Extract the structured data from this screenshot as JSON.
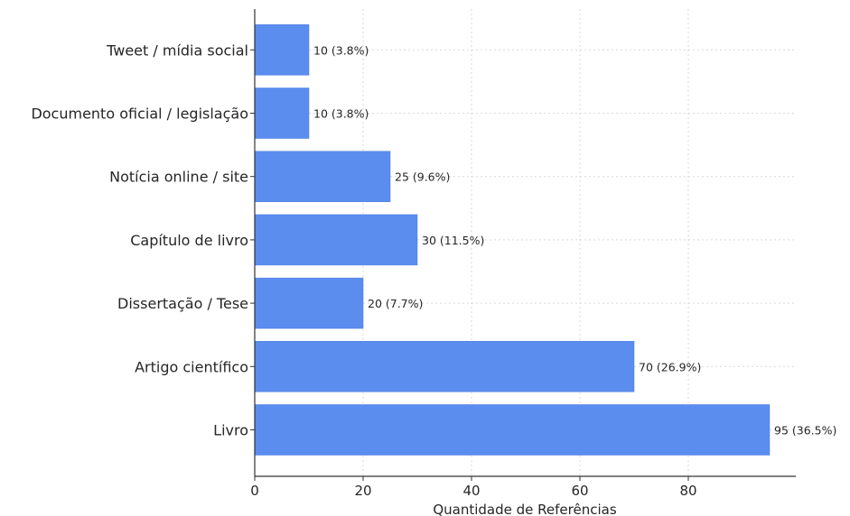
{
  "chart_data": {
    "type": "bar",
    "orientation": "horizontal",
    "title": "",
    "xlabel": "Quantidade de Referências",
    "ylabel": "",
    "categories": [
      "Livro",
      "Artigo científico",
      "Dissertação / Tese",
      "Capítulo de livro",
      "Notícia online / site",
      "Documento oficial / legislação",
      "Tweet / mídia social"
    ],
    "values": [
      95,
      70,
      20,
      30,
      25,
      10,
      10
    ],
    "data_labels": [
      "95 (36.5%)",
      "70 (26.9%)",
      "20 (7.7%)",
      "30 (11.5%)",
      "25 (9.6%)",
      "10 (3.8%)",
      "10 (3.8%)"
    ],
    "xlim": [
      0,
      100
    ],
    "xticks": [
      0,
      20,
      40,
      60,
      80
    ],
    "xtick_labels": [
      "0",
      "20",
      "40",
      "60",
      "80"
    ],
    "grid": true,
    "bar_color": "#5b8def"
  }
}
